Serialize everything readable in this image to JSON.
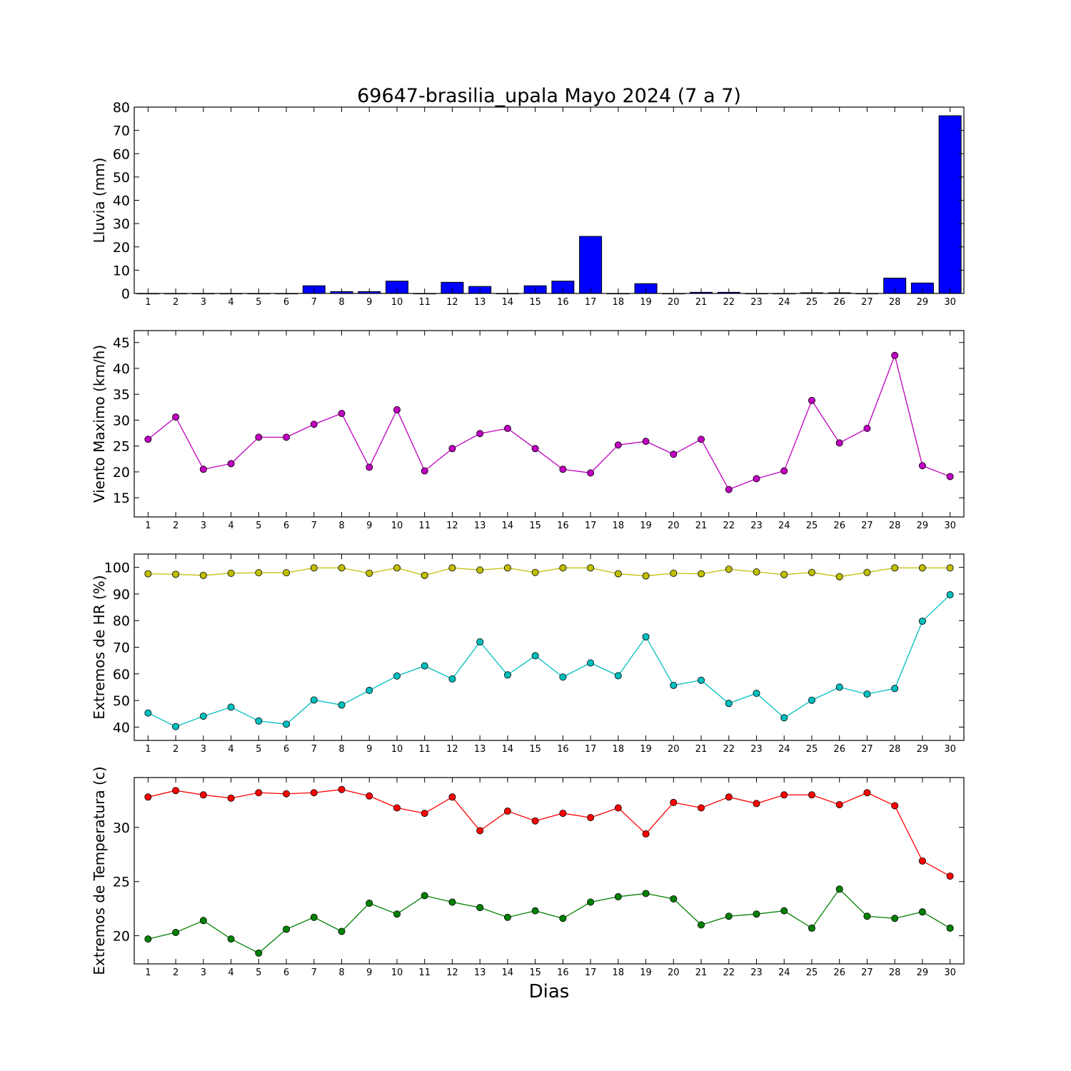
{
  "figure": {
    "title": "69647-brasilia_upala Mayo 2024  (7 a 7)",
    "xlabel": "Dias"
  },
  "chart_data": [
    {
      "type": "bar",
      "ylabel": "Lluvia (mm)",
      "ylim": [
        0,
        80
      ],
      "yticks": [
        0,
        10,
        20,
        30,
        40,
        50,
        60,
        70,
        80
      ],
      "xlim": [
        0.5,
        30.5
      ],
      "categories": [
        1,
        2,
        3,
        4,
        5,
        6,
        7,
        8,
        9,
        10,
        11,
        12,
        13,
        14,
        15,
        16,
        17,
        18,
        19,
        20,
        21,
        22,
        23,
        24,
        25,
        26,
        27,
        28,
        29,
        30
      ],
      "series": [
        {
          "color": "#0000ff",
          "values": [
            0,
            0,
            0,
            0,
            0,
            0,
            3.3,
            0.8,
            0.8,
            5.3,
            0,
            4.8,
            3.0,
            0,
            3.3,
            5.3,
            24.5,
            0,
            4.2,
            0,
            0.5,
            0.5,
            0,
            0,
            0.3,
            0.3,
            0,
            6.6,
            4.5,
            76.3
          ]
        }
      ],
      "grid": false
    },
    {
      "type": "line",
      "ylabel": "Viento Maximo (km/h)",
      "ylim": [
        11.3,
        47.3
      ],
      "yticks": [
        15,
        20,
        25,
        30,
        35,
        40,
        45
      ],
      "xlim": [
        0.5,
        30.5
      ],
      "x": [
        1,
        2,
        3,
        4,
        5,
        6,
        7,
        8,
        9,
        10,
        11,
        12,
        13,
        14,
        15,
        16,
        17,
        18,
        19,
        20,
        21,
        22,
        23,
        24,
        25,
        26,
        27,
        28,
        29,
        30
      ],
      "series": [
        {
          "color": "#bf00bf",
          "values": [
            26.3,
            30.6,
            20.5,
            21.6,
            26.7,
            26.7,
            29.2,
            31.3,
            20.9,
            32.0,
            20.2,
            24.5,
            27.4,
            28.4,
            24.5,
            20.5,
            19.8,
            25.2,
            25.9,
            23.4,
            26.3,
            16.6,
            18.7,
            20.2,
            33.8,
            25.6,
            28.4,
            42.5,
            21.2,
            19.1
          ]
        }
      ],
      "grid": false
    },
    {
      "type": "line",
      "ylabel": "Extremos de HR (%)",
      "ylim": [
        35,
        105
      ],
      "yticks": [
        40,
        50,
        60,
        70,
        80,
        90,
        100
      ],
      "xlim": [
        0.5,
        30.5
      ],
      "x": [
        1,
        2,
        3,
        4,
        5,
        6,
        7,
        8,
        9,
        10,
        11,
        12,
        13,
        14,
        15,
        16,
        17,
        18,
        19,
        20,
        21,
        22,
        23,
        24,
        25,
        26,
        27,
        28,
        29,
        30
      ],
      "series": [
        {
          "color": "#bfbf00",
          "values": [
            97.6,
            97.4,
            97.0,
            97.8,
            98.0,
            98.0,
            99.8,
            99.8,
            97.8,
            99.8,
            97.0,
            99.8,
            99.0,
            99.8,
            98.1,
            99.8,
            99.8,
            97.6,
            96.8,
            97.8,
            97.6,
            99.3,
            98.3,
            97.3,
            98.1,
            96.5,
            98.1,
            99.8,
            99.8,
            99.8
          ]
        },
        {
          "color": "#00bfbf",
          "values": [
            45.3,
            40.2,
            44.1,
            47.5,
            42.3,
            41.1,
            50.2,
            48.3,
            53.8,
            59.2,
            63.0,
            58.1,
            72.0,
            59.6,
            66.8,
            58.8,
            64.1,
            59.3,
            73.9,
            55.7,
            57.6,
            48.9,
            52.7,
            43.5,
            50.1,
            55.0,
            52.4,
            54.5,
            79.8,
            89.7
          ]
        }
      ],
      "grid": false
    },
    {
      "type": "line",
      "ylabel": "Extremos de Temperatura (c)",
      "ylim": [
        17.4,
        34.6
      ],
      "yticks": [
        20,
        25,
        30
      ],
      "xlim": [
        0.5,
        30.5
      ],
      "x": [
        1,
        2,
        3,
        4,
        5,
        6,
        7,
        8,
        9,
        10,
        11,
        12,
        13,
        14,
        15,
        16,
        17,
        18,
        19,
        20,
        21,
        22,
        23,
        24,
        25,
        26,
        27,
        28,
        29,
        30
      ],
      "series": [
        {
          "color": "#ff0000",
          "values": [
            32.8,
            33.4,
            33.0,
            32.7,
            33.2,
            33.1,
            33.2,
            33.5,
            32.9,
            31.8,
            31.3,
            32.8,
            29.7,
            31.5,
            30.6,
            31.3,
            30.9,
            31.8,
            29.4,
            32.3,
            31.8,
            32.8,
            32.2,
            33.0,
            33.0,
            32.1,
            33.2,
            32.0,
            26.9,
            25.5
          ]
        },
        {
          "color": "#008000",
          "values": [
            19.7,
            20.3,
            21.4,
            19.7,
            18.4,
            20.6,
            21.7,
            20.4,
            23.0,
            22.0,
            23.7,
            23.1,
            22.6,
            21.7,
            22.3,
            21.6,
            23.1,
            23.6,
            23.9,
            23.4,
            21.0,
            21.8,
            22.0,
            22.3,
            20.7,
            24.3,
            21.8,
            21.6,
            22.2,
            20.7
          ]
        }
      ],
      "grid": false
    }
  ]
}
